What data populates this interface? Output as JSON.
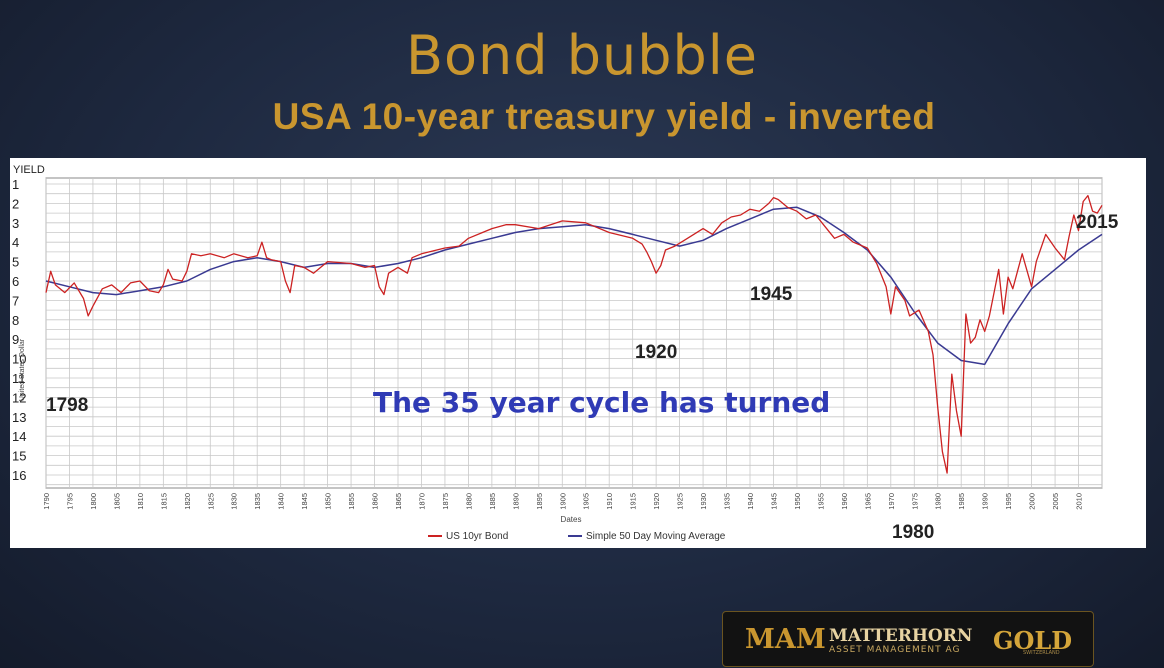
{
  "slide": {
    "title": "Bond bubble",
    "subtitle": "USA 10-year treasury yield  -  inverted"
  },
  "colors": {
    "title_gold": "#c9962f",
    "series_bond": "#cc2222",
    "series_ma": "#3a3a92",
    "cycle_text": "#2f3ab5",
    "background": "#1e2940"
  },
  "chart_data": {
    "type": "line",
    "title": "",
    "ylabel_top": "YIELD",
    "ylabel": "United States Dollar",
    "xlabel": "Dates",
    "y_inverted": true,
    "ylim": [
      1,
      16.5
    ],
    "xlim": [
      1790,
      2015
    ],
    "grid": true,
    "legend_position": "bottom",
    "y_ticks": [
      "1",
      "2",
      "3",
      "4",
      "5",
      "6",
      "7",
      "8",
      "9",
      "10",
      "11",
      "12",
      "13",
      "14",
      "15",
      "16"
    ],
    "x_ticks": [
      "1790",
      "1795",
      "1800",
      "1805",
      "1810",
      "1815",
      "1820",
      "1825",
      "1830",
      "1835",
      "1840",
      "1845",
      "1850",
      "1855",
      "1860",
      "1865",
      "1870",
      "1875",
      "1880",
      "1885",
      "1890",
      "1895",
      "1900",
      "1905",
      "1910",
      "1915",
      "1920",
      "1925",
      "1930",
      "1935",
      "1940",
      "1945",
      "1950",
      "1955",
      "1960",
      "1965",
      "1970",
      "1975",
      "1980",
      "1985",
      "1990",
      "1995",
      "2000",
      "2005",
      "2010"
    ],
    "series": [
      {
        "name": "US 10yr Bond",
        "color": "#cc2222",
        "points": [
          [
            1790,
            6.6
          ],
          [
            1791,
            5.5
          ],
          [
            1792,
            6.2
          ],
          [
            1794,
            6.6
          ],
          [
            1796,
            6.1
          ],
          [
            1798,
            6.9
          ],
          [
            1799,
            7.8
          ],
          [
            1800,
            7.3
          ],
          [
            1802,
            6.4
          ],
          [
            1804,
            6.2
          ],
          [
            1806,
            6.6
          ],
          [
            1808,
            6.1
          ],
          [
            1810,
            6.0
          ],
          [
            1812,
            6.5
          ],
          [
            1814,
            6.6
          ],
          [
            1815,
            6.2
          ],
          [
            1816,
            5.4
          ],
          [
            1817,
            5.9
          ],
          [
            1819,
            6.0
          ],
          [
            1820,
            5.5
          ],
          [
            1821,
            4.6
          ],
          [
            1823,
            4.7
          ],
          [
            1825,
            4.6
          ],
          [
            1828,
            4.8
          ],
          [
            1830,
            4.6
          ],
          [
            1833,
            4.8
          ],
          [
            1835,
            4.7
          ],
          [
            1836,
            4.0
          ],
          [
            1837,
            4.8
          ],
          [
            1838,
            4.9
          ],
          [
            1840,
            5.0
          ],
          [
            1841,
            6.0
          ],
          [
            1842,
            6.6
          ],
          [
            1843,
            5.2
          ],
          [
            1845,
            5.3
          ],
          [
            1847,
            5.6
          ],
          [
            1850,
            5.0
          ],
          [
            1855,
            5.1
          ],
          [
            1858,
            5.3
          ],
          [
            1860,
            5.2
          ],
          [
            1861,
            6.3
          ],
          [
            1862,
            6.7
          ],
          [
            1863,
            5.6
          ],
          [
            1865,
            5.3
          ],
          [
            1867,
            5.6
          ],
          [
            1868,
            4.8
          ],
          [
            1870,
            4.6
          ],
          [
            1875,
            4.3
          ],
          [
            1878,
            4.2
          ],
          [
            1880,
            3.8
          ],
          [
            1883,
            3.5
          ],
          [
            1885,
            3.3
          ],
          [
            1888,
            3.1
          ],
          [
            1890,
            3.1
          ],
          [
            1895,
            3.3
          ],
          [
            1900,
            2.9
          ],
          [
            1905,
            3.0
          ],
          [
            1910,
            3.5
          ],
          [
            1915,
            3.8
          ],
          [
            1917,
            4.1
          ],
          [
            1918,
            4.5
          ],
          [
            1919,
            5.0
          ],
          [
            1920,
            5.6
          ],
          [
            1921,
            5.2
          ],
          [
            1922,
            4.4
          ],
          [
            1924,
            4.2
          ],
          [
            1926,
            3.9
          ],
          [
            1928,
            3.6
          ],
          [
            1930,
            3.3
          ],
          [
            1932,
            3.6
          ],
          [
            1934,
            3.0
          ],
          [
            1936,
            2.7
          ],
          [
            1938,
            2.6
          ],
          [
            1940,
            2.3
          ],
          [
            1942,
            2.4
          ],
          [
            1944,
            2.0
          ],
          [
            1945,
            1.7
          ],
          [
            1946,
            1.8
          ],
          [
            1948,
            2.2
          ],
          [
            1950,
            2.4
          ],
          [
            1952,
            2.8
          ],
          [
            1954,
            2.6
          ],
          [
            1956,
            3.2
          ],
          [
            1958,
            3.8
          ],
          [
            1960,
            3.6
          ],
          [
            1962,
            4.0
          ],
          [
            1965,
            4.3
          ],
          [
            1967,
            5.1
          ],
          [
            1969,
            6.3
          ],
          [
            1970,
            7.7
          ],
          [
            1971,
            6.3
          ],
          [
            1973,
            7.0
          ],
          [
            1974,
            7.8
          ],
          [
            1976,
            7.5
          ],
          [
            1978,
            8.6
          ],
          [
            1979,
            9.8
          ],
          [
            1980,
            12.5
          ],
          [
            1981,
            14.8
          ],
          [
            1982,
            15.9
          ],
          [
            1983,
            10.8
          ],
          [
            1984,
            12.7
          ],
          [
            1985,
            14.0
          ],
          [
            1986,
            7.7
          ],
          [
            1987,
            9.2
          ],
          [
            1988,
            8.9
          ],
          [
            1989,
            8.0
          ],
          [
            1990,
            8.6
          ],
          [
            1991,
            7.8
          ],
          [
            1993,
            5.4
          ],
          [
            1994,
            7.7
          ],
          [
            1995,
            5.8
          ],
          [
            1996,
            6.4
          ],
          [
            1998,
            4.6
          ],
          [
            2000,
            6.3
          ],
          [
            2001,
            5.0
          ],
          [
            2003,
            3.6
          ],
          [
            2005,
            4.3
          ],
          [
            2007,
            4.9
          ],
          [
            2008,
            3.7
          ],
          [
            2009,
            2.6
          ],
          [
            2010,
            3.4
          ],
          [
            2011,
            1.9
          ],
          [
            2012,
            1.6
          ],
          [
            2013,
            2.4
          ],
          [
            2014,
            2.5
          ],
          [
            2015,
            2.1
          ]
        ]
      },
      {
        "name": "Simple 50 Day Moving Average",
        "color": "#3a3a92",
        "points": [
          [
            1790,
            6.0
          ],
          [
            1795,
            6.3
          ],
          [
            1800,
            6.6
          ],
          [
            1805,
            6.7
          ],
          [
            1810,
            6.5
          ],
          [
            1815,
            6.3
          ],
          [
            1820,
            6.0
          ],
          [
            1825,
            5.4
          ],
          [
            1830,
            5.0
          ],
          [
            1835,
            4.8
          ],
          [
            1840,
            5.0
          ],
          [
            1845,
            5.3
          ],
          [
            1850,
            5.1
          ],
          [
            1855,
            5.1
          ],
          [
            1860,
            5.3
          ],
          [
            1865,
            5.1
          ],
          [
            1870,
            4.8
          ],
          [
            1875,
            4.4
          ],
          [
            1880,
            4.1
          ],
          [
            1885,
            3.8
          ],
          [
            1890,
            3.5
          ],
          [
            1895,
            3.3
          ],
          [
            1900,
            3.2
          ],
          [
            1905,
            3.1
          ],
          [
            1910,
            3.3
          ],
          [
            1915,
            3.6
          ],
          [
            1920,
            3.9
          ],
          [
            1925,
            4.2
          ],
          [
            1930,
            3.9
          ],
          [
            1935,
            3.3
          ],
          [
            1940,
            2.8
          ],
          [
            1945,
            2.3
          ],
          [
            1950,
            2.2
          ],
          [
            1955,
            2.7
          ],
          [
            1960,
            3.5
          ],
          [
            1965,
            4.4
          ],
          [
            1970,
            5.8
          ],
          [
            1975,
            7.6
          ],
          [
            1980,
            9.2
          ],
          [
            1985,
            10.1
          ],
          [
            1990,
            10.3
          ],
          [
            1995,
            8.2
          ],
          [
            2000,
            6.4
          ],
          [
            2005,
            5.4
          ],
          [
            2010,
            4.4
          ],
          [
            2015,
            3.6
          ]
        ]
      }
    ],
    "annotations": [
      {
        "text": "1798"
      },
      {
        "text": "1920"
      },
      {
        "text": "1945"
      },
      {
        "text": "1980"
      },
      {
        "text": "2015"
      },
      {
        "text": "The 35 year cycle has turned"
      }
    ]
  },
  "logo": {
    "mark": "MAM",
    "name": "MATTERHORN",
    "tagline": "ASSET MANAGEMENT AG",
    "brand": "GOLD",
    "brand_sub": "SWITZERLAND"
  }
}
